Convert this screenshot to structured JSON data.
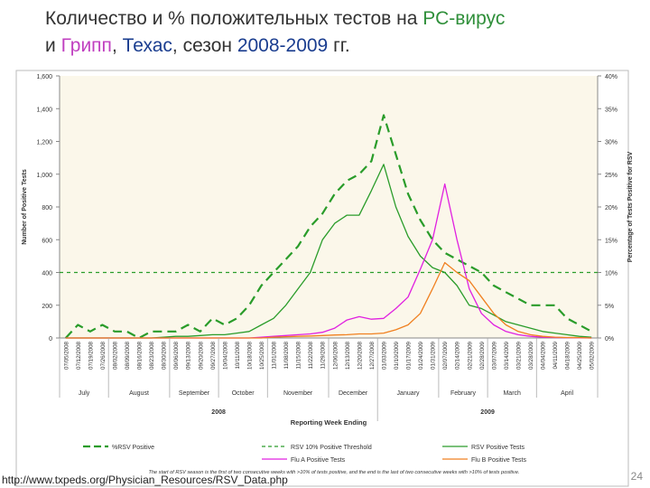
{
  "slide": {
    "title_line1_a": "Количество и % положительных  тестов на ",
    "title_line1_b": "РС-вирус",
    "title_line2_a": "и ",
    "title_line2_b": "Грипп",
    "title_line2_c": ", ",
    "title_line2_d": "Техас",
    "title_line2_e": ", сезон ",
    "title_line2_f": "2008-2009",
    "title_line2_g": " гг.",
    "footer_url": "http://www.txpeds.org/Physician_Resources/RSV_Data.php",
    "page_number": "24"
  },
  "chart_data": {
    "type": "line",
    "title": "",
    "xlabel": "Reporting Week Ending",
    "ylabel": "Number of Positive Tests",
    "y2label": "Percentage of Tests Positive for RSV",
    "ylim": [
      0,
      1600
    ],
    "y2lim": [
      0,
      40
    ],
    "yticks": [
      "0",
      "200",
      "400",
      "600",
      "800",
      "1,000",
      "1,200",
      "1,400",
      "1,600"
    ],
    "y2ticks": [
      "0%",
      "5%",
      "10%",
      "15%",
      "20%",
      "25%",
      "30%",
      "35%",
      "40%"
    ],
    "x": [
      "07/05/2008",
      "07/12/2008",
      "07/19/2008",
      "07/26/2008",
      "08/02/2008",
      "08/09/2008",
      "08/16/2008",
      "08/23/2008",
      "08/30/2008",
      "09/06/2008",
      "09/13/2008",
      "09/20/2008",
      "09/27/2008",
      "10/04/2008",
      "10/11/2008",
      "10/18/2008",
      "10/25/2008",
      "11/01/2008",
      "11/08/2008",
      "11/15/2008",
      "11/22/2008",
      "11/29/2008",
      "12/06/2008",
      "12/13/2008",
      "12/20/2008",
      "12/27/2008",
      "01/03/2009",
      "01/10/2009",
      "01/17/2009",
      "01/24/2009",
      "01/31/2009",
      "02/07/2009",
      "02/14/2009",
      "02/21/2009",
      "02/28/2009",
      "03/07/2009",
      "03/14/2009",
      "03/21/2009",
      "03/28/2009",
      "04/04/2009",
      "04/11/2009",
      "04/18/2009",
      "04/25/2009",
      "05/02/2009"
    ],
    "month_labels": [
      "July",
      "August",
      "September",
      "October",
      "November",
      "December",
      "January",
      "February",
      "March",
      "April"
    ],
    "month_start_index": [
      0,
      4,
      9,
      13,
      17,
      22,
      26,
      31,
      35,
      39
    ],
    "month_end_index": [
      3,
      8,
      12,
      16,
      21,
      25,
      30,
      34,
      38,
      43
    ],
    "year_labels": [
      "2008",
      "2009"
    ],
    "threshold_pct": 10,
    "series": [
      {
        "name": "%RSV Positive",
        "axis": "y2",
        "style": "long-dash",
        "color": "#2a9c2a",
        "values": [
          0,
          2,
          1,
          2,
          1,
          1,
          0,
          1,
          1,
          1,
          2,
          1,
          3,
          2,
          3,
          5,
          8,
          10,
          12,
          14,
          17,
          19,
          22,
          24,
          25,
          27,
          34,
          28,
          22,
          18,
          15,
          13,
          12,
          11,
          10,
          8,
          7,
          6,
          5,
          5,
          5,
          3,
          2,
          1
        ]
      },
      {
        "name": "RSV 10% Positive Threshold",
        "axis": "y2",
        "style": "dash",
        "color": "#2a9c2a",
        "constant": 10
      },
      {
        "name": "RSV Positive Tests",
        "axis": "y",
        "style": "solid",
        "color": "#2a9c2a",
        "values": [
          0,
          0,
          0,
          0,
          0,
          0,
          0,
          0,
          5,
          10,
          10,
          15,
          20,
          20,
          30,
          40,
          80,
          120,
          200,
          300,
          400,
          600,
          700,
          750,
          750,
          900,
          1060,
          800,
          620,
          500,
          430,
          400,
          320,
          200,
          180,
          140,
          100,
          80,
          60,
          40,
          30,
          20,
          10,
          5
        ]
      },
      {
        "name": "Flu A Positive Tests",
        "axis": "y",
        "style": "solid",
        "color": "#e020e0",
        "values": [
          0,
          0,
          0,
          0,
          0,
          0,
          0,
          0,
          0,
          0,
          0,
          0,
          0,
          0,
          0,
          0,
          5,
          10,
          15,
          20,
          25,
          35,
          60,
          110,
          130,
          115,
          120,
          180,
          250,
          420,
          600,
          940,
          600,
          300,
          150,
          80,
          40,
          20,
          10,
          5,
          3,
          2,
          1,
          0
        ]
      },
      {
        "name": "Flu B Positive Tests",
        "axis": "y",
        "style": "solid",
        "color": "#f08020",
        "values": [
          0,
          0,
          0,
          0,
          0,
          0,
          0,
          0,
          0,
          0,
          0,
          0,
          0,
          0,
          0,
          0,
          0,
          5,
          8,
          10,
          12,
          15,
          18,
          20,
          25,
          25,
          30,
          50,
          80,
          150,
          300,
          460,
          400,
          350,
          250,
          150,
          80,
          40,
          20,
          10,
          5,
          3,
          2,
          0
        ]
      }
    ],
    "legend": [
      "%RSV Positive",
      "RSV 10% Positive Threshold",
      "RSV Positive Tests",
      "Flu A Positive Tests",
      "Flu B Positive Tests"
    ],
    "legend_position": "bottom",
    "footnote": "The start of RSV season is the first of two consecutive weeks with >10% of tests positive, and the end is the last of two consecutive weeks with >10% of tests positive."
  }
}
